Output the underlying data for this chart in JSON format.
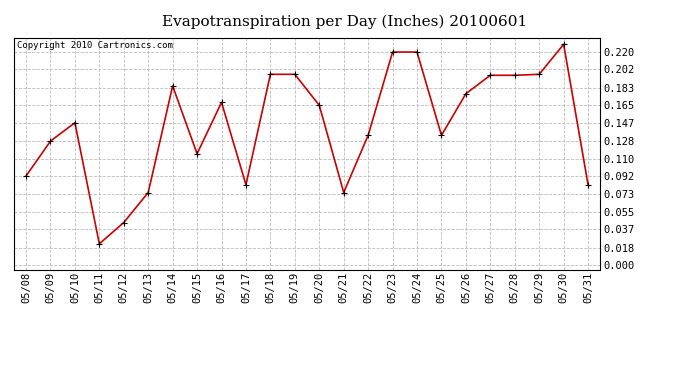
{
  "title": "Evapotranspiration per Day (Inches) 20100601",
  "copyright": "Copyright 2010 Cartronics.com",
  "x_labels": [
    "05/08",
    "05/09",
    "05/10",
    "05/11",
    "05/12",
    "05/13",
    "05/14",
    "05/15",
    "05/16",
    "05/17",
    "05/18",
    "05/19",
    "05/20",
    "05/21",
    "05/22",
    "05/23",
    "05/24",
    "05/25",
    "05/26",
    "05/27",
    "05/28",
    "05/29",
    "05/30",
    "05/31"
  ],
  "y_values": [
    0.092,
    0.128,
    0.147,
    0.022,
    0.044,
    0.075,
    0.185,
    0.115,
    0.168,
    0.083,
    0.197,
    0.197,
    0.165,
    0.075,
    0.134,
    0.22,
    0.22,
    0.134,
    0.177,
    0.196,
    0.196,
    0.197,
    0.228,
    0.083
  ],
  "y_ticks": [
    0.0,
    0.018,
    0.037,
    0.055,
    0.073,
    0.092,
    0.11,
    0.128,
    0.147,
    0.165,
    0.183,
    0.202,
    0.22
  ],
  "line_color": "#cc0000",
  "marker": "+",
  "marker_size": 5,
  "bg_color": "#ffffff",
  "plot_bg_color": "#ffffff",
  "grid_color": "#bbbbbb",
  "title_fontsize": 11,
  "tick_fontsize": 7.5,
  "copyright_fontsize": 6.5,
  "ylim_min": -0.005,
  "ylim_max": 0.235
}
